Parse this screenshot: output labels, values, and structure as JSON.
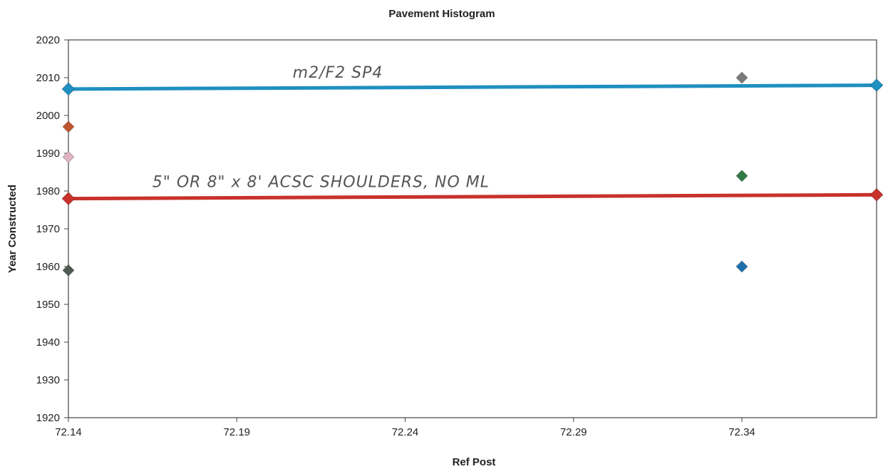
{
  "chart_data": {
    "type": "scatter",
    "title": "Pavement Histogram",
    "xlabel": "Ref Post",
    "ylabel": "Year Constructed",
    "xlim": [
      72.14,
      72.38
    ],
    "ylim": [
      1920,
      2020
    ],
    "x_ticks": [
      "72.14",
      "72.19",
      "72.24",
      "72.29",
      "72.34"
    ],
    "y_ticks": [
      "1920",
      "1930",
      "1940",
      "1950",
      "1960",
      "1970",
      "1980",
      "1990",
      "2000",
      "2010",
      "2020"
    ],
    "grid": false,
    "legend": "none",
    "lines": [
      {
        "color": "#1f8fc0",
        "points": [
          [
            72.14,
            2007
          ],
          [
            72.38,
            2008
          ]
        ]
      },
      {
        "color": "#c8322b",
        "points": [
          [
            72.14,
            1978
          ],
          [
            72.38,
            1979
          ]
        ]
      }
    ],
    "points": [
      {
        "x": 72.14,
        "y": 1997,
        "color": "#c0552f"
      },
      {
        "x": 72.14,
        "y": 1989,
        "color": "#e0b3c0"
      },
      {
        "x": 72.14,
        "y": 1959,
        "color": "#4f5a52"
      },
      {
        "x": 72.34,
        "y": 2010,
        "color": "#7a7a7a"
      },
      {
        "x": 72.34,
        "y": 1984,
        "color": "#2f7a45"
      },
      {
        "x": 72.34,
        "y": 1960,
        "color": "#1e6fae"
      }
    ],
    "annotations": [
      {
        "text": "m2/F2 SP4",
        "x": 72.22,
        "y": 2010
      },
      {
        "text": "5\" OR 8\" x 8' ACSC SHOULDERS, NO ML",
        "x": 72.215,
        "y": 1981
      }
    ]
  }
}
